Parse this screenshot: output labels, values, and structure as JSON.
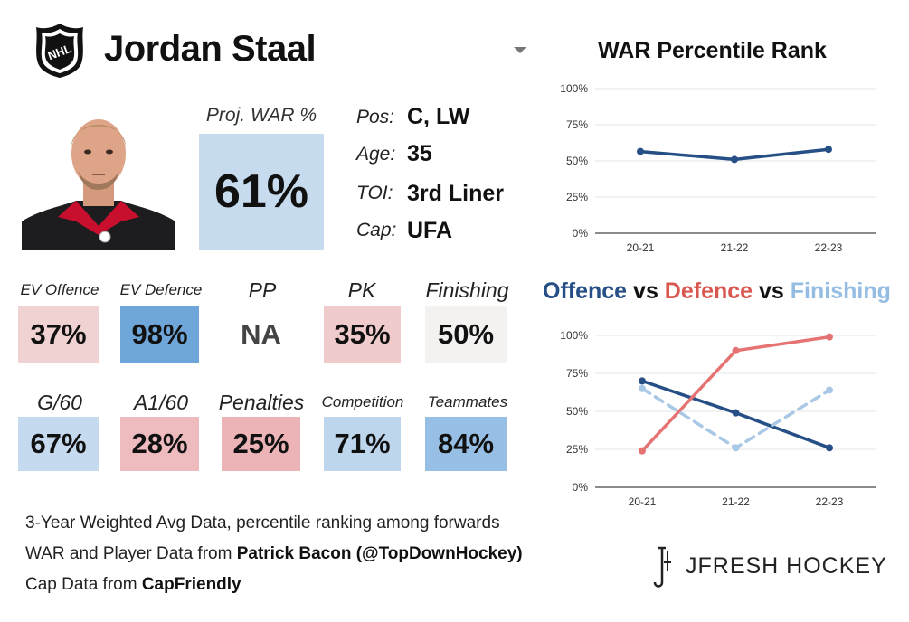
{
  "header": {
    "player_name": "Jordan Staal",
    "logo_icon": "nhl-shield-icon",
    "dropdown_icon": "chevron-down-icon"
  },
  "projection": {
    "label": "Proj. WAR %",
    "value": "61%",
    "color": "#c6dcee"
  },
  "info": [
    {
      "label": "Pos:",
      "value": "C, LW"
    },
    {
      "label": "Age:",
      "value": "35"
    },
    {
      "label": "TOI:",
      "value": "3rd Liner"
    },
    {
      "label": "Cap:",
      "value": "UFA"
    }
  ],
  "metrics_row1": [
    {
      "label": "EV Offence",
      "value": "37%",
      "color": "#f0d2d3"
    },
    {
      "label": "EV Defence",
      "value": "98%",
      "color": "#6fa6d9"
    },
    {
      "label": "PP",
      "value": "NA",
      "color": "#ffffff"
    },
    {
      "label": "PK",
      "value": "35%",
      "color": "#f0cbcc"
    },
    {
      "label": "Finishing",
      "value": "50%",
      "color": "#f4f1f1"
    }
  ],
  "metrics_row2": [
    {
      "label": "G/60",
      "value": "67%",
      "color": "#c5daee"
    },
    {
      "label": "A1/60",
      "value": "28%",
      "color": "#eebcbe"
    },
    {
      "label": "Penalties",
      "value": "25%",
      "color": "#ecb4b6"
    },
    {
      "label": "Competition",
      "value": "71%",
      "color": "#bdd6ec"
    },
    {
      "label": "Teammates",
      "value": "84%",
      "color": "#97bee4"
    }
  ],
  "footer": {
    "line1": "3-Year Weighted Avg Data, percentile ranking among forwards",
    "line2_prefix": "WAR and Player Data from ",
    "line2_bold": "Patrick Bacon (@TopDownHockey)",
    "line3_prefix": "Cap Data from ",
    "line3_bold": "CapFriendly",
    "brand": "JFRESH HOCKEY"
  },
  "chart_data": [
    {
      "type": "line",
      "title": "WAR Percentile Rank",
      "categories": [
        "20-21",
        "21-22",
        "22-23"
      ],
      "yticks": [
        "0%",
        "25%",
        "50%",
        "75%",
        "100%"
      ],
      "ylim": [
        0,
        100
      ],
      "series": [
        {
          "name": "WAR",
          "values": [
            56.5,
            51,
            58
          ],
          "color": "#264f86",
          "dashed": false
        }
      ]
    },
    {
      "type": "line",
      "title_parts": [
        {
          "text": "Offence",
          "color": "#264f86"
        },
        {
          "text": " vs ",
          "color": "#111111"
        },
        {
          "text": "Defence",
          "color": "#d9574f"
        },
        {
          "text": " vs ",
          "color": "#111111"
        },
        {
          "text": "Finishing",
          "color": "#95bde3"
        }
      ],
      "categories": [
        "20-21",
        "21-22",
        "22-23"
      ],
      "yticks": [
        "0%",
        "25%",
        "50%",
        "75%",
        "100%"
      ],
      "ylim": [
        0,
        100
      ],
      "series": [
        {
          "name": "Offence",
          "values": [
            70,
            49,
            26
          ],
          "color": "#264f86",
          "dashed": false
        },
        {
          "name": "Defence",
          "values": [
            24,
            90,
            99
          ],
          "color": "#e57373",
          "dashed": false
        },
        {
          "name": "Finishing",
          "values": [
            65,
            26,
            64
          ],
          "color": "#a9c8e6",
          "dashed": true
        }
      ]
    }
  ]
}
